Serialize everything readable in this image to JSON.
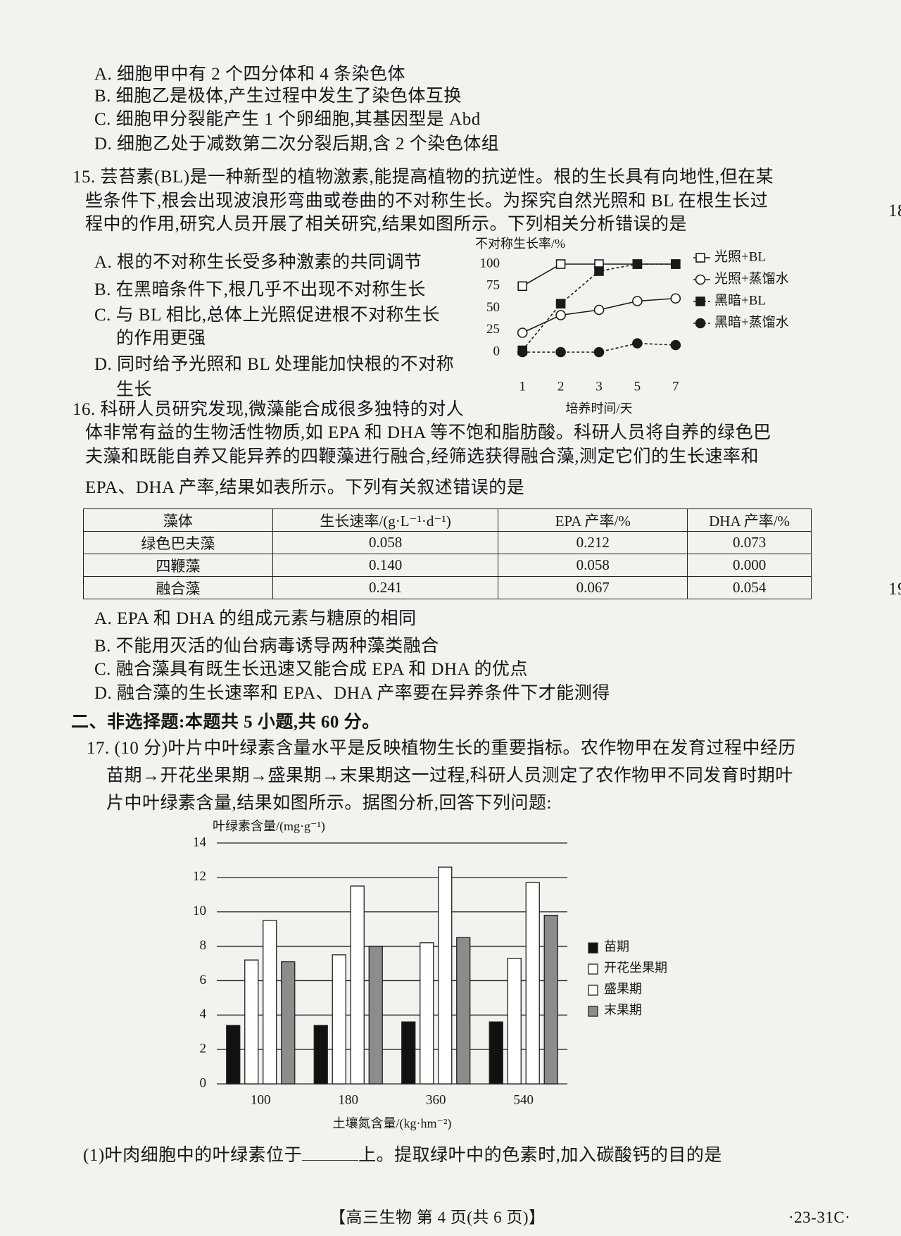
{
  "q14": {
    "options": [
      "A. 细胞甲中有 2 个四分体和 4 条染色体",
      "B. 细胞乙是极体,产生过程中发生了染色体互换",
      "C. 细胞甲分裂能产生 1 个卵细胞,其基因型是 Abd",
      "D. 细胞乙处于减数第二次分裂后期,含 2 个染色体组"
    ]
  },
  "q15": {
    "stem": [
      "15. 芸苔素(BL)是一种新型的植物激素,能提高植物的抗逆性。根的生长具有向地性,但在某",
      "些条件下,根会出现波浪形弯曲或卷曲的不对称生长。为探究自然光照和 BL 在根生长过",
      "程中的作用,研究人员开展了相关研究,结果如图所示。下列相关分析错误的是"
    ],
    "option_lines": [
      "A. 根的不对称生长受多种激素的共同调节",
      "B. 在黑暗条件下,根几乎不出现不对称生长",
      "C. 与 BL 相比,总体上光照促进根不对称生长",
      "的作用更强",
      "D. 同时给予光照和 BL 处理能加快根的不对称",
      "生长"
    ]
  },
  "q16": {
    "stem": [
      "16. 科研人员研究发现,微藻能合成很多独特的对人",
      "体非常有益的生物活性物质,如 EPA 和 DHA 等不饱和脂肪酸。科研人员将自养的绿色巴",
      "夫藻和既能自养又能异养的四鞭藻进行融合,经筛选获得融合藻,测定它们的生长速率和",
      "EPA、DHA 产率,结果如表所示。下列有关叙述错误的是"
    ],
    "table": {
      "header": [
        "藻体",
        "生长速率/(g·L⁻¹·d⁻¹)",
        "EPA 产率/%",
        "DHA 产率/%"
      ],
      "rows": [
        [
          "绿色巴夫藻",
          "0.058",
          "0.212",
          "0.073"
        ],
        [
          "四鞭藻",
          "0.140",
          "0.058",
          "0.000"
        ],
        [
          "融合藻",
          "0.241",
          "0.067",
          "0.054"
        ]
      ]
    },
    "options": [
      "A. EPA 和 DHA 的组成元素与糖原的相同",
      "B. 不能用灭活的仙台病毒诱导两种藻类融合",
      "C. 融合藻具有既生长迅速又能合成 EPA 和 DHA 的优点",
      "D. 融合藻的生长速率和 EPA、DHA 产率要在异养条件下才能测得"
    ]
  },
  "section": "二、非选择题:本题共 5 小题,共 60 分。",
  "q17": {
    "stem": [
      "17. (10 分)叶片中叶绿素含量水平是反映植物生长的重要指标。农作物甲在发育过程中经历",
      "苗期→开花坐果期→盛果期→末果期这一过程,科研人员测定了农作物甲不同发育时期叶",
      "片中叶绿素含量,结果如图所示。据图分析,回答下列问题:"
    ],
    "sub1": [
      "(1)叶肉细胞中的叶绿素位于",
      "上。提取绿叶中的色素时,加入碳酸钙的目的是"
    ]
  },
  "footer": {
    "center": "【高三生物  第 4 页(共 6 页)】",
    "right": "·23-31C·"
  },
  "margin": [
    "18",
    "19"
  ],
  "chart_data": [
    {
      "type": "line",
      "y_label": "不对称生长率/%",
      "x_label": "培养时间/天",
      "categories": [
        "1",
        "2",
        "3",
        "5",
        "7"
      ],
      "ylim": [
        0,
        100
      ],
      "yticks": [
        0,
        25,
        50,
        75,
        100
      ],
      "legend": "right",
      "series": [
        {
          "name": "光照+BL",
          "color": "#1a1a1a",
          "marker": "square-open",
          "dashed": false,
          "values": [
            75,
            100,
            100,
            100,
            100
          ]
        },
        {
          "name": "光照+蒸馏水",
          "color": "#1a1a1a",
          "marker": "circle-open",
          "dashed": false,
          "values": [
            22,
            42,
            48,
            58,
            61
          ]
        },
        {
          "name": "黑暗+BL",
          "color": "#1a1a1a",
          "marker": "square",
          "dashed": true,
          "values": [
            2,
            55,
            92,
            100,
            100
          ]
        },
        {
          "name": "黑暗+蒸馏水",
          "color": "#1a1a1a",
          "marker": "circle",
          "dashed": true,
          "values": [
            0,
            0,
            0,
            10,
            8
          ]
        }
      ]
    },
    {
      "type": "bar",
      "y_label": "叶绿素含量/(mg·g⁻¹)",
      "x_label": "土壤氮含量/(kg·hm⁻²)",
      "categories": [
        "100",
        "180",
        "360",
        "540"
      ],
      "ylim": [
        0,
        14
      ],
      "yticks": [
        0,
        2,
        4,
        6,
        8,
        10,
        12,
        14
      ],
      "grid": true,
      "legend": "right",
      "series": [
        {
          "name": "苗期",
          "color": "#111111",
          "values": [
            3.4,
            3.4,
            3.6,
            3.6
          ]
        },
        {
          "name": "开花坐果期",
          "color": "#ffffff",
          "values": [
            7.2,
            7.5,
            8.2,
            7.3
          ]
        },
        {
          "name": "盛果期",
          "color": "#ffffff",
          "values": [
            9.5,
            11.5,
            12.6,
            11.7
          ]
        },
        {
          "name": "末果期",
          "color": "#8c8c8c",
          "values": [
            7.1,
            8.0,
            8.5,
            9.8
          ]
        }
      ]
    }
  ]
}
